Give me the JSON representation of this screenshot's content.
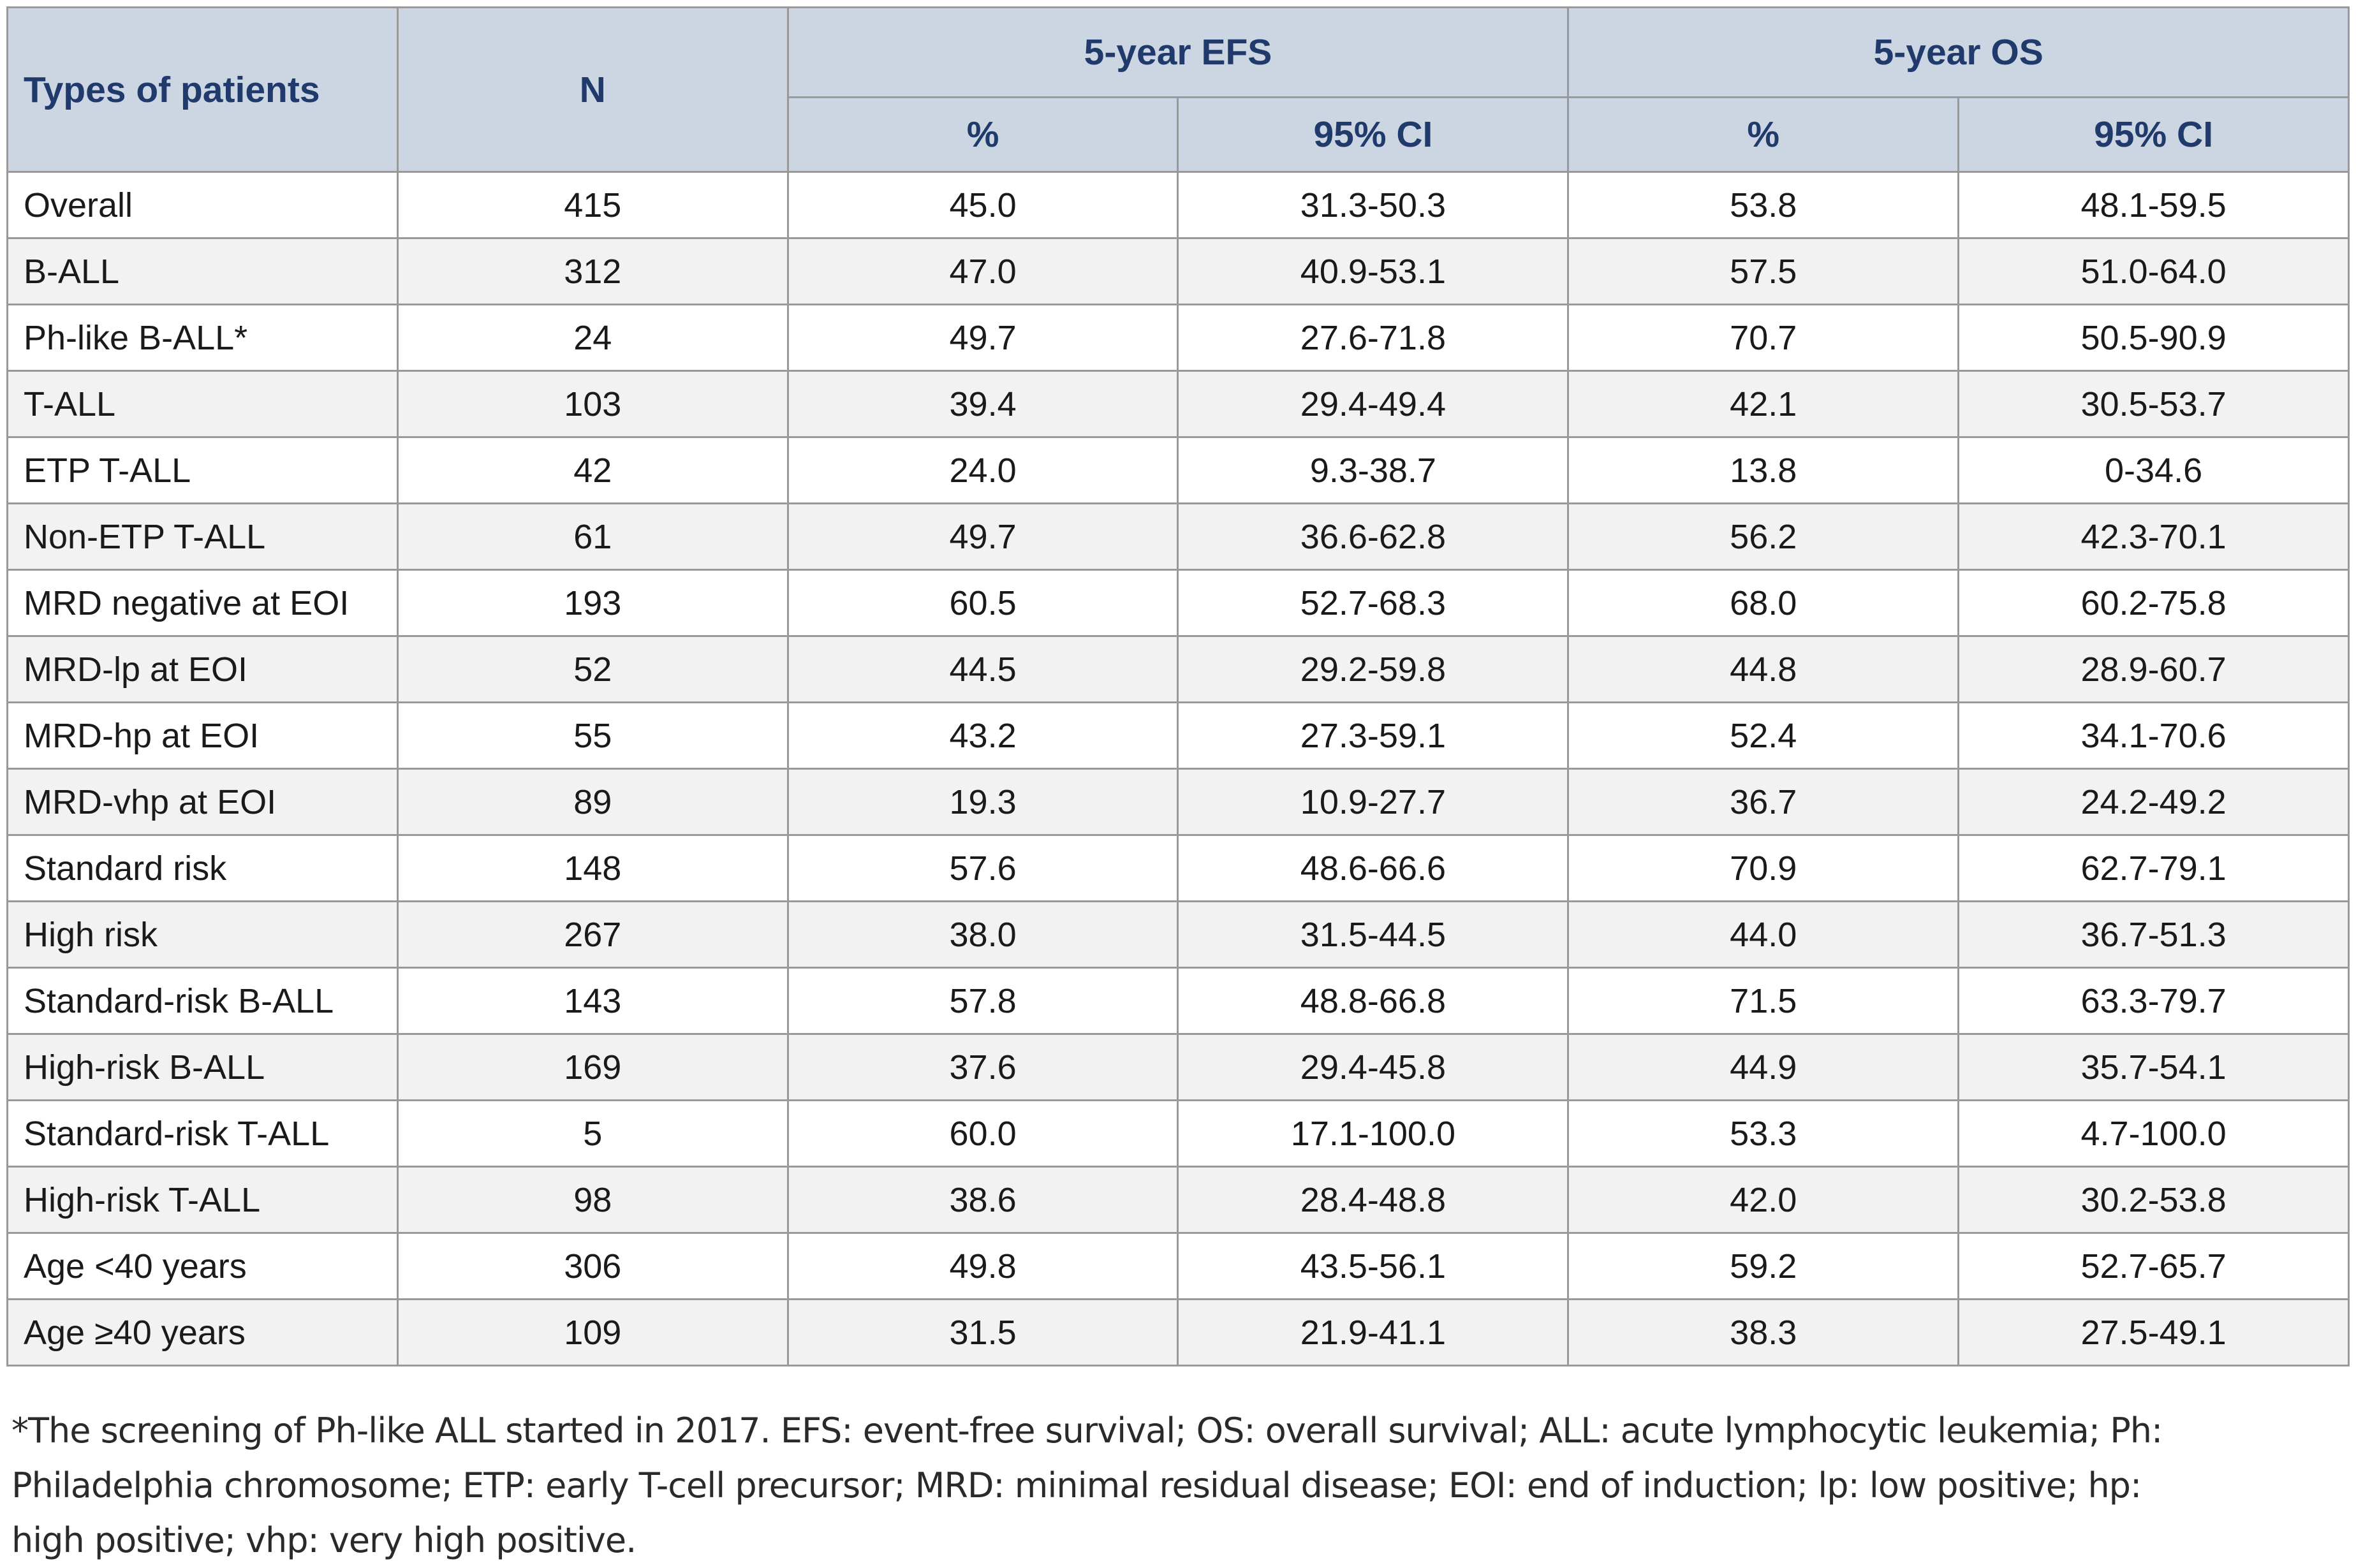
{
  "table": {
    "header": {
      "col_type": "Types of patients",
      "col_n": "N",
      "group_efs": {
        "label": "5-year EFS",
        "pct": "%",
        "ci": "95% CI"
      },
      "group_os": {
        "label": "5-year OS",
        "pct": "%",
        "ci": "95% CI"
      }
    },
    "rows": [
      {
        "type": "Overall",
        "n": "415",
        "efs_pct": "45.0",
        "efs_ci": "31.3-50.3",
        "os_pct": "53.8",
        "os_ci": "48.1-59.5"
      },
      {
        "type": "B-ALL",
        "n": "312",
        "efs_pct": "47.0",
        "efs_ci": "40.9-53.1",
        "os_pct": "57.5",
        "os_ci": "51.0-64.0"
      },
      {
        "type": "Ph-like B-ALL*",
        "n": "24",
        "efs_pct": "49.7",
        "efs_ci": "27.6-71.8",
        "os_pct": "70.7",
        "os_ci": "50.5-90.9"
      },
      {
        "type": "T-ALL",
        "n": "103",
        "efs_pct": "39.4",
        "efs_ci": "29.4-49.4",
        "os_pct": "42.1",
        "os_ci": "30.5-53.7"
      },
      {
        "type": "ETP T-ALL",
        "n": "42",
        "efs_pct": "24.0",
        "efs_ci": "9.3-38.7",
        "os_pct": "13.8",
        "os_ci": "0-34.6"
      },
      {
        "type": "Non-ETP T-ALL",
        "n": "61",
        "efs_pct": "49.7",
        "efs_ci": "36.6-62.8",
        "os_pct": "56.2",
        "os_ci": "42.3-70.1"
      },
      {
        "type": "MRD negative at EOI",
        "n": "193",
        "efs_pct": "60.5",
        "efs_ci": "52.7-68.3",
        "os_pct": "68.0",
        "os_ci": "60.2-75.8"
      },
      {
        "type": "MRD-lp at EOI",
        "n": "52",
        "efs_pct": "44.5",
        "efs_ci": "29.2-59.8",
        "os_pct": "44.8",
        "os_ci": "28.9-60.7"
      },
      {
        "type": "MRD-hp at EOI",
        "n": "55",
        "efs_pct": "43.2",
        "efs_ci": "27.3-59.1",
        "os_pct": "52.4",
        "os_ci": "34.1-70.6"
      },
      {
        "type": "MRD-vhp at EOI",
        "n": "89",
        "efs_pct": "19.3",
        "efs_ci": "10.9-27.7",
        "os_pct": "36.7",
        "os_ci": "24.2-49.2"
      },
      {
        "type": "Standard risk",
        "n": "148",
        "efs_pct": "57.6",
        "efs_ci": "48.6-66.6",
        "os_pct": "70.9",
        "os_ci": "62.7-79.1"
      },
      {
        "type": "High risk",
        "n": "267",
        "efs_pct": "38.0",
        "efs_ci": "31.5-44.5",
        "os_pct": "44.0",
        "os_ci": "36.7-51.3"
      },
      {
        "type": "Standard-risk B-ALL",
        "n": "143",
        "efs_pct": "57.8",
        "efs_ci": "48.8-66.8",
        "os_pct": "71.5",
        "os_ci": "63.3-79.7"
      },
      {
        "type": "High-risk B-ALL",
        "n": "169",
        "efs_pct": "37.6",
        "efs_ci": "29.4-45.8",
        "os_pct": "44.9",
        "os_ci": "35.7-54.1"
      },
      {
        "type": "Standard-risk T-ALL",
        "n": "5",
        "efs_pct": "60.0",
        "efs_ci": "17.1-100.0",
        "os_pct": "53.3",
        "os_ci": "4.7-100.0"
      },
      {
        "type": "High-risk T-ALL",
        "n": "98",
        "efs_pct": "38.6",
        "efs_ci": "28.4-48.8",
        "os_pct": "42.0",
        "os_ci": "30.2-53.8"
      },
      {
        "type": "Age <40 years",
        "n": "306",
        "efs_pct": "49.8",
        "efs_ci": "43.5-56.1",
        "os_pct": "59.2",
        "os_ci": "52.7-65.7"
      },
      {
        "type": "Age ≥40 years",
        "n": "109",
        "efs_pct": "31.5",
        "efs_ci": "21.9-41.1",
        "os_pct": "38.3",
        "os_ci": "27.5-49.1"
      }
    ]
  },
  "footnote": {
    "lines": [
      "*The screening of Ph-like ALL started in 2017. EFS: event-free survival; OS: overall survival; ALL: acute lymphocytic leukemia; Ph:",
      "Philadelphia chromosome; ETP: early T-cell precursor; MRD: minimal residual disease; EOI: end of induction; lp: low positive; hp:",
      "high positive; vhp: very high positive."
    ],
    "full_text": "*The screening of Ph-like ALL started in 2017. EFS: event-free survival; OS: overall survival; ALL: acute lymphocytic leukemia; Ph: Philadelphia chromosome; ETP: early T-cell precursor; MRD: minimal residual disease; EOI: end of induction; lp: low positive; hp: high positive; vhp: very high positive."
  },
  "colors": {
    "header_bg": "#ccd5e2",
    "header_text": "#1f3a6b",
    "stripe_bg": "#f2f2f2",
    "border": "#999999",
    "text": "#1a1a1a"
  }
}
